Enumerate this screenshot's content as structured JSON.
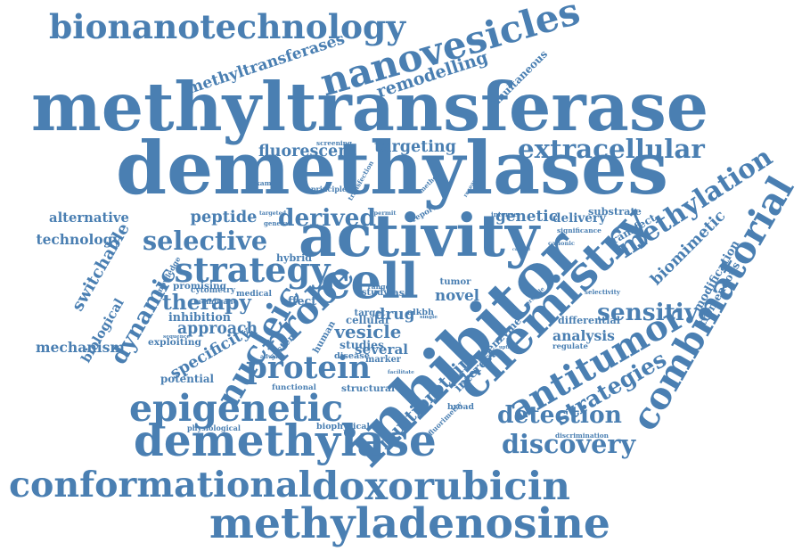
{
  "words": [
    "methyltransferase",
    "demethylases",
    "inhibitor",
    "chemistry",
    "activity",
    "combinatorial",
    "doxorubicin",
    "conformational",
    "methyladenosine",
    "demethylase",
    "epigenetic",
    "bionanotechnology",
    "nanovesicles",
    "cell",
    "methylation",
    "antitumor",
    "strategy",
    "selective",
    "probe",
    "protein",
    "nucleic",
    "dynamic",
    "switchable",
    "detection",
    "discovery",
    "sensitive",
    "extracellular",
    "biomimetic",
    "strategies",
    "methyltransferases",
    "remodelling",
    "therapy",
    "approach",
    "specificity",
    "vesicle",
    "derived",
    "mechanism",
    "alternative",
    "technology",
    "targeting",
    "fluorescent",
    "peptide",
    "genetic",
    "delivery",
    "analysis",
    "multiprotein",
    "interest",
    "several",
    "drug",
    "human",
    "simultaneous",
    "inhibition",
    "promising",
    "differential",
    "potential",
    "modification",
    "tremendous",
    "transfect",
    "substrate",
    "biological",
    "exploiting",
    "knowledge",
    "cytometry",
    "membrane",
    "cellular",
    "studies",
    "marker",
    "disease",
    "system",
    "hybrid",
    "structural",
    "functional",
    "physiological",
    "biophysical",
    "fluorimetry",
    "discrimination",
    "regulate",
    "enzyme",
    "novel",
    "alkbh",
    "tumor",
    "target",
    "study",
    "base",
    "intense",
    "research",
    "report",
    "method",
    "screening",
    "principle",
    "transfection",
    "example",
    "targeted",
    "general",
    "permit",
    "significance",
    "cationic",
    "selectivity",
    "effect",
    "medical",
    "sequence",
    "advance",
    "range",
    "single",
    "facilitate",
    "broad",
    "uptake",
    "powerful",
    "versatile",
    "cultured"
  ]
}
